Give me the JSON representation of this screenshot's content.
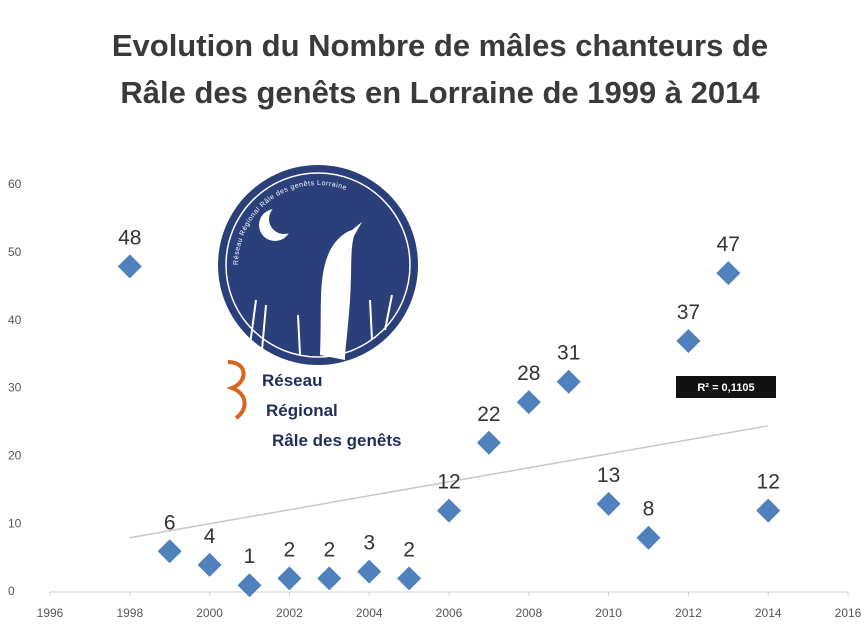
{
  "chart_data": {
    "type": "scatter",
    "title": "Evolution du Nombre de mâles chanteurs de Râle des genêts en Lorraine de 1999 à 2014",
    "x": [
      1998,
      1999,
      2000,
      2001,
      2002,
      2003,
      2004,
      2005,
      2006,
      2007,
      2008,
      2009,
      2010,
      2011,
      2012,
      2013,
      2014
    ],
    "series": [
      {
        "color": "#4f81bd",
        "values": [
          48,
          6,
          4,
          1,
          2,
          2,
          3,
          2,
          12,
          22,
          28,
          31,
          13,
          8,
          37,
          47,
          12
        ]
      }
    ],
    "xlim": [
      1996,
      2016
    ],
    "xticks": [
      1996,
      1998,
      2000,
      2002,
      2004,
      2006,
      2008,
      2010,
      2012,
      2014,
      2016
    ],
    "ylim": [
      0,
      60
    ],
    "yticks": [
      0,
      10,
      20,
      30,
      40,
      50,
      60
    ],
    "grid": false,
    "trendline": {
      "x": [
        1998,
        2014
      ],
      "values": [
        8,
        24.5
      ],
      "color": "#c8c8c8",
      "label": "R² = 0,1105"
    },
    "logo": {
      "ring_text": "Réseau Régional Râle des genêts Lorraine",
      "lines": [
        "Réseau",
        "Régional",
        "Râle des genêts"
      ]
    }
  }
}
